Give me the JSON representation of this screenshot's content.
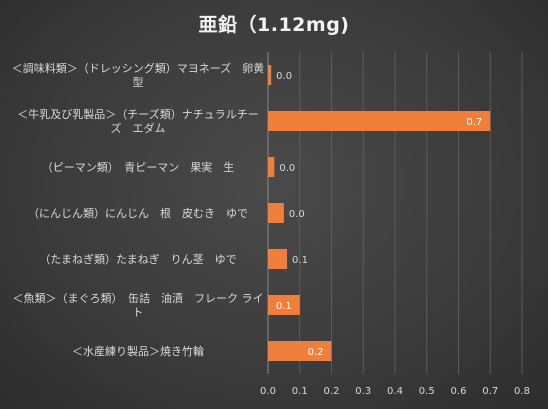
{
  "chart_data": {
    "type": "bar",
    "orientation": "horizontal",
    "title": "亜鉛（1.12mg)",
    "xlabel": "",
    "ylabel": "",
    "categories": [
      "＜調味料類＞（ドレッシング類）マヨネーズ　卵黄型",
      "＜牛乳及び乳製品＞（チーズ類）ナチュラルチーズ　エダム",
      "（ピーマン類）　青ピーマン　果実　生",
      "（にんじん類）にんじん　根　皮むき　ゆで",
      "（たまねぎ類）たまねぎ　りん茎　ゆで",
      "＜魚類＞（まぐろ類）　缶詰　油漬　フレーク ライト",
      "＜水産練り製品＞焼き竹輪"
    ],
    "category_label_lines": [
      [
        "＜調味料類＞（ドレッシング類）マヨネーズ　卵黄",
        "型"
      ],
      [
        "＜牛乳及び乳製品＞（チーズ類）ナチュラルチー",
        "ズ　エダム"
      ],
      [
        "（ピーマン類）　青ピーマン　果実　生"
      ],
      [
        "（にんじん類）にんじん　根　皮むき　ゆで"
      ],
      [
        "（たまねぎ類）たまねぎ　りん茎　ゆで"
      ],
      [
        "＜魚類＞（まぐろ類）　缶詰　油漬　フレーク ライ",
        "ト"
      ],
      [
        "＜水産練り製品＞焼き竹輪"
      ]
    ],
    "values": [
      0.01,
      0.7,
      0.02,
      0.05,
      0.06,
      0.1,
      0.2
    ],
    "data_labels": [
      "0.0",
      "0.7",
      "0.0",
      "0.0",
      "0.1",
      "0.1",
      "0.2"
    ],
    "xlim": [
      0,
      0.8
    ],
    "xticks": [
      0,
      0.1,
      0.2,
      0.3,
      0.4,
      0.5,
      0.6,
      0.7,
      0.8
    ],
    "xtick_labels": [
      "0.0",
      "0.1",
      "0.2",
      "0.3",
      "0.4",
      "0.5",
      "0.6",
      "0.7",
      "0.8"
    ],
    "grid": "vertical",
    "legend": "none",
    "colors": {
      "bar": "#f07f3c",
      "bar_label_inside": "#ffffff",
      "bar_label_outside": "#d9d9d9",
      "text": "#d9d9d9",
      "grid": "#5c5c5c",
      "axis": "#8a8a8a"
    }
  }
}
